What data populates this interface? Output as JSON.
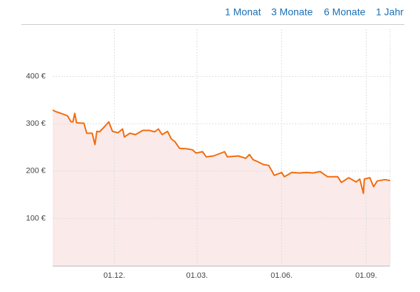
{
  "links": [
    "1 Monat",
    "3 Monate",
    "6 Monate",
    "1 Jahr"
  ],
  "chart_data": {
    "type": "line",
    "x": [
      0,
      3,
      9,
      16,
      20,
      22,
      24,
      26,
      34,
      37,
      43,
      46,
      48,
      51,
      57,
      61,
      65,
      71,
      76,
      78,
      84,
      90,
      98,
      105,
      111,
      115,
      119,
      125,
      129,
      133,
      138,
      146,
      152,
      156,
      163,
      167,
      175,
      187,
      190,
      202,
      210,
      214,
      218,
      223,
      229,
      235,
      241,
      249,
      252,
      260,
      268,
      276,
      283,
      291,
      299,
      310,
      314,
      322,
      330,
      334,
      338,
      339,
      345,
      349,
      353,
      361,
      367
    ],
    "series": [
      {
        "color": "#f26c0d",
        "fill": "#fbeaea",
        "values": [
          329,
          326,
          322,
          317,
          304,
          304,
          322,
          302,
          301,
          280,
          280,
          256,
          284,
          283,
          295,
          304,
          284,
          281,
          289,
          272,
          280,
          277,
          286,
          286,
          283,
          289,
          277,
          284,
          268,
          262,
          248,
          247,
          245,
          238,
          241,
          230,
          232,
          241,
          230,
          232,
          227,
          235,
          224,
          220,
          214,
          212,
          191,
          197,
          188,
          197,
          196,
          197,
          196,
          199,
          188,
          188,
          176,
          186,
          177,
          183,
          153,
          183,
          186,
          167,
          179,
          182,
          180
        ]
      }
    ],
    "xlim": [
      0,
      367
    ],
    "xticks": [
      {
        "value": 67,
        "label": "01.12."
      },
      {
        "value": 157,
        "label": "01.03."
      },
      {
        "value": 249,
        "label": "01.06."
      },
      {
        "value": 341,
        "label": "01.09."
      }
    ],
    "ylim": [
      0,
      500
    ],
    "yticks": [
      {
        "value": 100,
        "label": "100 €"
      },
      {
        "value": 200,
        "label": "200 €"
      },
      {
        "value": 300,
        "label": "300 €"
      },
      {
        "value": 400,
        "label": "400 €"
      }
    ],
    "grid": true
  }
}
